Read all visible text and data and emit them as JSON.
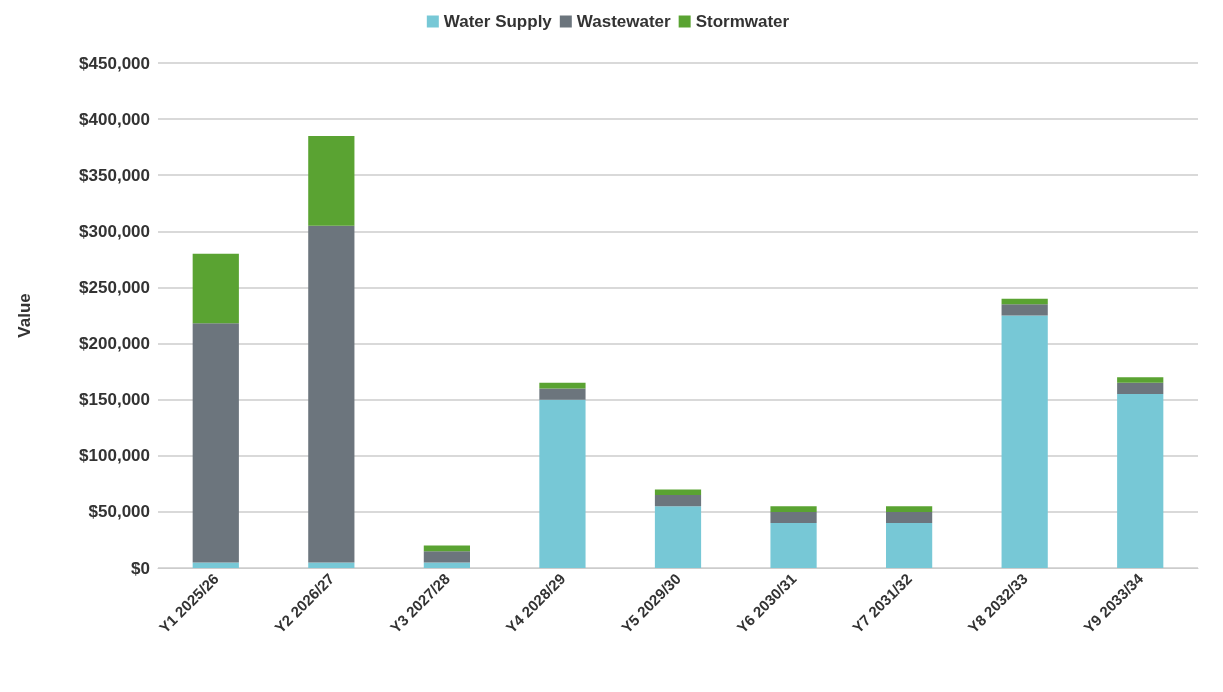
{
  "chart_data": {
    "type": "bar",
    "stacked": true,
    "ylabel": "Value",
    "categories": [
      "Y1 2025/26",
      "Y2 2026/27",
      "Y3 2027/28",
      "Y4 2028/29",
      "Y5 2029/30",
      "Y6 2030/31",
      "Y7 2031/32",
      "Y8 2032/33",
      "Y9 2033/34"
    ],
    "series": [
      {
        "name": "Water Supply",
        "color": "#77c8d6",
        "values": [
          5000,
          5000,
          5000,
          150000,
          55000,
          40000,
          40000,
          225000,
          155000
        ]
      },
      {
        "name": "Wastewater",
        "color": "#6c757d",
        "values": [
          213000,
          300000,
          10000,
          10000,
          10000,
          10000,
          10000,
          10000,
          10000
        ]
      },
      {
        "name": "Stormwater",
        "color": "#5aa332",
        "values": [
          62000,
          80000,
          5000,
          5000,
          5000,
          5000,
          5000,
          5000,
          5000
        ]
      }
    ],
    "ylim": [
      0,
      450000
    ],
    "yticks": [
      {
        "value": 0,
        "label": "$0"
      },
      {
        "value": 50000,
        "label": "$50,000"
      },
      {
        "value": 100000,
        "label": "$100,000"
      },
      {
        "value": 150000,
        "label": "$150,000"
      },
      {
        "value": 200000,
        "label": "$200,000"
      },
      {
        "value": 250000,
        "label": "$250,000"
      },
      {
        "value": 300000,
        "label": "$300,000"
      },
      {
        "value": 350000,
        "label": "$350,000"
      },
      {
        "value": 400000,
        "label": "$400,000"
      },
      {
        "value": 450000,
        "label": "$450,000"
      }
    ],
    "grid": "y",
    "legend": "top"
  }
}
